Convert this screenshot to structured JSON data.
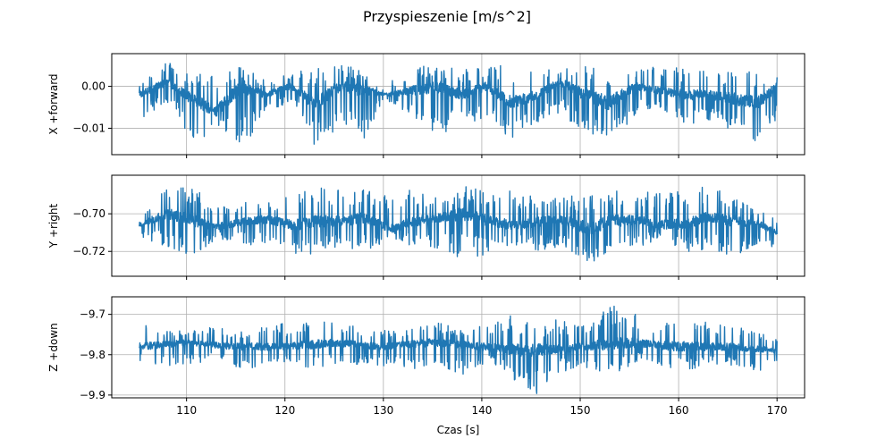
{
  "figure": {
    "title": "Przyspieszenie [m/s^2]"
  },
  "chart_data": [
    {
      "type": "line",
      "ylabel": "X +forward",
      "xlabel": "",
      "xlim": [
        102.4,
        172.8
      ],
      "ylim": [
        -0.0163,
        0.0078
      ],
      "xticks": [
        110,
        120,
        130,
        140,
        150,
        160,
        170
      ],
      "xtick_labels_visible": false,
      "yticks": [
        0.0,
        -0.01
      ],
      "ytick_labels": [
        "0.00",
        "−0.01"
      ],
      "grid": true,
      "color": "#1f77b4",
      "x_range": [
        105.2,
        170.0
      ],
      "series": [
        {
          "baseline": {
            "x": [
              105.2,
              108,
              110.5,
              113,
              115.5,
              118,
              120.5,
              123,
              125.5,
              128,
              130.5,
              133,
              135.5,
              138,
              140.5,
              143,
              145.5,
              148,
              150.5,
              153,
              155.5,
              158,
              160.5,
              163,
              165.5,
              168,
              170.0
            ],
            "y": [
              -0.002,
              0.001,
              -0.003,
              -0.006,
              0.0,
              -0.002,
              0.0,
              -0.004,
              0.0,
              -0.001,
              -0.002,
              -0.001,
              0.0,
              -0.002,
              0.0,
              -0.004,
              -0.002,
              0.001,
              -0.002,
              -0.004,
              0.0,
              -0.001,
              -0.002,
              -0.002,
              -0.003,
              -0.004,
              0.0
            ]
          },
          "envelope_low": {
            "x": [
              105.2,
              108,
              111,
              113,
              116,
              118,
              121,
              123,
              126,
              128,
              130,
              133,
              136,
              138,
              141,
              143,
              146,
              148,
              151,
              153,
              156,
              158,
              161,
              163,
              166,
              168,
              170.0
            ],
            "y": [
              -0.008,
              -0.004,
              -0.014,
              -0.01,
              -0.015,
              -0.006,
              -0.004,
              -0.014,
              -0.01,
              -0.013,
              -0.003,
              -0.008,
              -0.012,
              -0.009,
              -0.008,
              -0.014,
              -0.008,
              -0.007,
              -0.012,
              -0.014,
              -0.006,
              -0.005,
              -0.01,
              -0.008,
              -0.013,
              -0.014,
              -0.008
            ]
          },
          "envelope_high": {
            "x": [
              105.2,
              107,
              108,
              111,
              113,
              115,
              118,
              121,
              123,
              126,
              128,
              130,
              133,
              136,
              138,
              141,
              143,
              146,
              148,
              151,
              153,
              156,
              158,
              161,
              163,
              166,
              170.0
            ],
            "y": [
              0.0,
              0.005,
              0.006,
              0.003,
              0.004,
              0.005,
              0.002,
              0.004,
              0.005,
              0.005,
              0.004,
              0.0,
              0.005,
              0.005,
              0.004,
              0.005,
              0.005,
              0.004,
              0.004,
              0.005,
              0.005,
              0.004,
              0.005,
              0.004,
              0.004,
              0.004,
              0.003
            ]
          }
        }
      ]
    },
    {
      "type": "line",
      "ylabel": "Y +right",
      "xlabel": "",
      "xlim": [
        102.4,
        172.8
      ],
      "ylim": [
        -0.7332,
        -0.6795
      ],
      "xticks": [
        110,
        120,
        130,
        140,
        150,
        160,
        170
      ],
      "xtick_labels_visible": false,
      "yticks": [
        -0.7,
        -0.72
      ],
      "ytick_labels": [
        "−0.70",
        "−0.72"
      ],
      "grid": true,
      "color": "#1f77b4",
      "x_range": [
        105.2,
        170.0
      ],
      "series": [
        {
          "baseline": {
            "x": [
              105.2,
              108,
              111,
              113,
              116,
              118,
              121,
              123,
              126,
              128,
              131,
              133,
              136,
              138,
              141,
              143,
              146,
              148,
              151,
              153,
              156,
              158,
              161,
              163,
              166,
              168,
              170.0
            ],
            "y": [
              -0.706,
              -0.7,
              -0.704,
              -0.707,
              -0.704,
              -0.703,
              -0.706,
              -0.704,
              -0.704,
              -0.702,
              -0.708,
              -0.704,
              -0.702,
              -0.7,
              -0.704,
              -0.706,
              -0.704,
              -0.703,
              -0.708,
              -0.704,
              -0.703,
              -0.706,
              -0.705,
              -0.702,
              -0.704,
              -0.705,
              -0.71
            ]
          },
          "envelope_low": {
            "x": [
              105.2,
              108,
              111,
              113,
              116,
              118,
              121,
              123,
              126,
              128,
              131,
              133,
              136,
              138,
              141,
              143,
              146,
              148,
              151,
              153,
              156,
              158,
              161,
              163,
              166,
              168,
              170.0
            ],
            "y": [
              -0.714,
              -0.718,
              -0.723,
              -0.713,
              -0.716,
              -0.718,
              -0.721,
              -0.722,
              -0.718,
              -0.72,
              -0.713,
              -0.718,
              -0.719,
              -0.724,
              -0.722,
              -0.716,
              -0.72,
              -0.718,
              -0.729,
              -0.722,
              -0.718,
              -0.713,
              -0.72,
              -0.721,
              -0.722,
              -0.716,
              -0.718
            ]
          },
          "envelope_high": {
            "x": [
              105.2,
              107,
              108,
              111,
              113,
              116,
              118,
              121,
              123,
              126,
              128,
              131,
              133,
              136,
              138,
              141,
              143,
              146,
              148,
              151,
              153,
              156,
              158,
              161,
              163,
              166,
              170.0
            ],
            "y": [
              -0.704,
              -0.69,
              -0.685,
              -0.687,
              -0.693,
              -0.694,
              -0.694,
              -0.69,
              -0.685,
              -0.687,
              -0.687,
              -0.689,
              -0.686,
              -0.693,
              -0.684,
              -0.69,
              -0.687,
              -0.69,
              -0.69,
              -0.69,
              -0.686,
              -0.69,
              -0.686,
              -0.687,
              -0.685,
              -0.69,
              -0.702
            ]
          }
        }
      ]
    },
    {
      "type": "line",
      "ylabel": "Z +down",
      "xlabel": "Czas [s]",
      "xlim": [
        102.4,
        172.8
      ],
      "ylim": [
        -9.9069,
        -9.6565
      ],
      "xticks": [
        110,
        120,
        130,
        140,
        150,
        160,
        170
      ],
      "xtick_labels": [
        "110",
        "120",
        "130",
        "140",
        "150",
        "160",
        "170"
      ],
      "xtick_labels_visible": true,
      "yticks": [
        -9.7,
        -9.8,
        -9.9
      ],
      "ytick_labels": [
        "−9.7",
        "−9.8",
        "−9.9"
      ],
      "grid": true,
      "color": "#1f77b4",
      "x_range": [
        105.2,
        170.0
      ],
      "series": [
        {
          "baseline": {
            "x": [
              105.2,
              110,
              115,
              120,
              125,
              130,
              135,
              140,
              145,
              150,
              155,
              160,
              165,
              170.0
            ],
            "y": [
              -9.78,
              -9.77,
              -9.78,
              -9.78,
              -9.77,
              -9.78,
              -9.77,
              -9.78,
              -9.79,
              -9.78,
              -9.77,
              -9.78,
              -9.78,
              -9.79
            ]
          },
          "envelope_low": {
            "x": [
              105.2,
              108,
              111,
              113,
              116,
              118,
              121,
              123,
              126,
              128,
              131,
              133,
              136,
              138,
              141,
              143,
              145.5,
              148,
              151,
              153,
              156,
              158,
              161,
              163,
              166,
              168,
              170.0
            ],
            "y": [
              -9.82,
              -9.83,
              -9.82,
              -9.82,
              -9.84,
              -9.82,
              -9.83,
              -9.84,
              -9.82,
              -9.83,
              -9.83,
              -9.84,
              -9.83,
              -9.85,
              -9.82,
              -9.86,
              -9.9,
              -9.84,
              -9.84,
              -9.85,
              -9.82,
              -9.83,
              -9.84,
              -9.83,
              -9.83,
              -9.84,
              -9.83
            ]
          },
          "envelope_high": {
            "x": [
              105.2,
              106,
              108,
              111,
              113,
              116,
              118,
              121,
              123,
              126,
              128,
              131,
              133,
              136,
              138,
              141,
              143,
              146,
              148,
              151,
              153.5,
              156,
              158,
              161,
              163,
              166,
              170.0
            ],
            "y": [
              -9.77,
              -9.72,
              -9.74,
              -9.74,
              -9.73,
              -9.74,
              -9.71,
              -9.73,
              -9.71,
              -9.72,
              -9.73,
              -9.74,
              -9.73,
              -9.72,
              -9.73,
              -9.72,
              -9.7,
              -9.72,
              -9.71,
              -9.72,
              -9.67,
              -9.7,
              -9.72,
              -9.69,
              -9.72,
              -9.73,
              -9.76
            ]
          }
        }
      ]
    }
  ]
}
